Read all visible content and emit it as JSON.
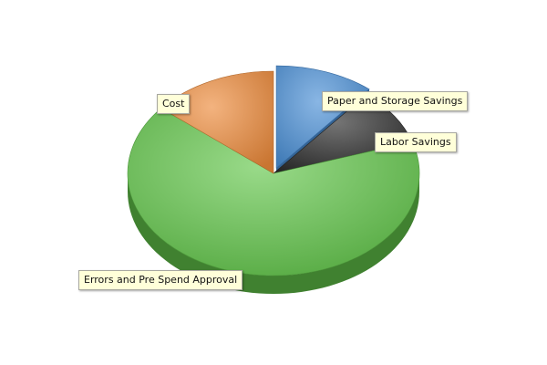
{
  "chart_data": {
    "type": "pie",
    "style": "3d-exploded",
    "legend": "none",
    "slices": [
      {
        "label": "Paper and Storage Savings",
        "value": 11,
        "color": "#4a8fd6",
        "exploded": true
      },
      {
        "label": "Labor Savings",
        "value": 9,
        "color": "#2b2b2b",
        "exploded": false
      },
      {
        "label": "Errors and Pre Spend Approval",
        "value": 66,
        "color": "#62c64a",
        "exploded": false
      },
      {
        "label": "Cost",
        "value": 14,
        "color": "#ec8a3a",
        "exploded": false
      }
    ]
  }
}
